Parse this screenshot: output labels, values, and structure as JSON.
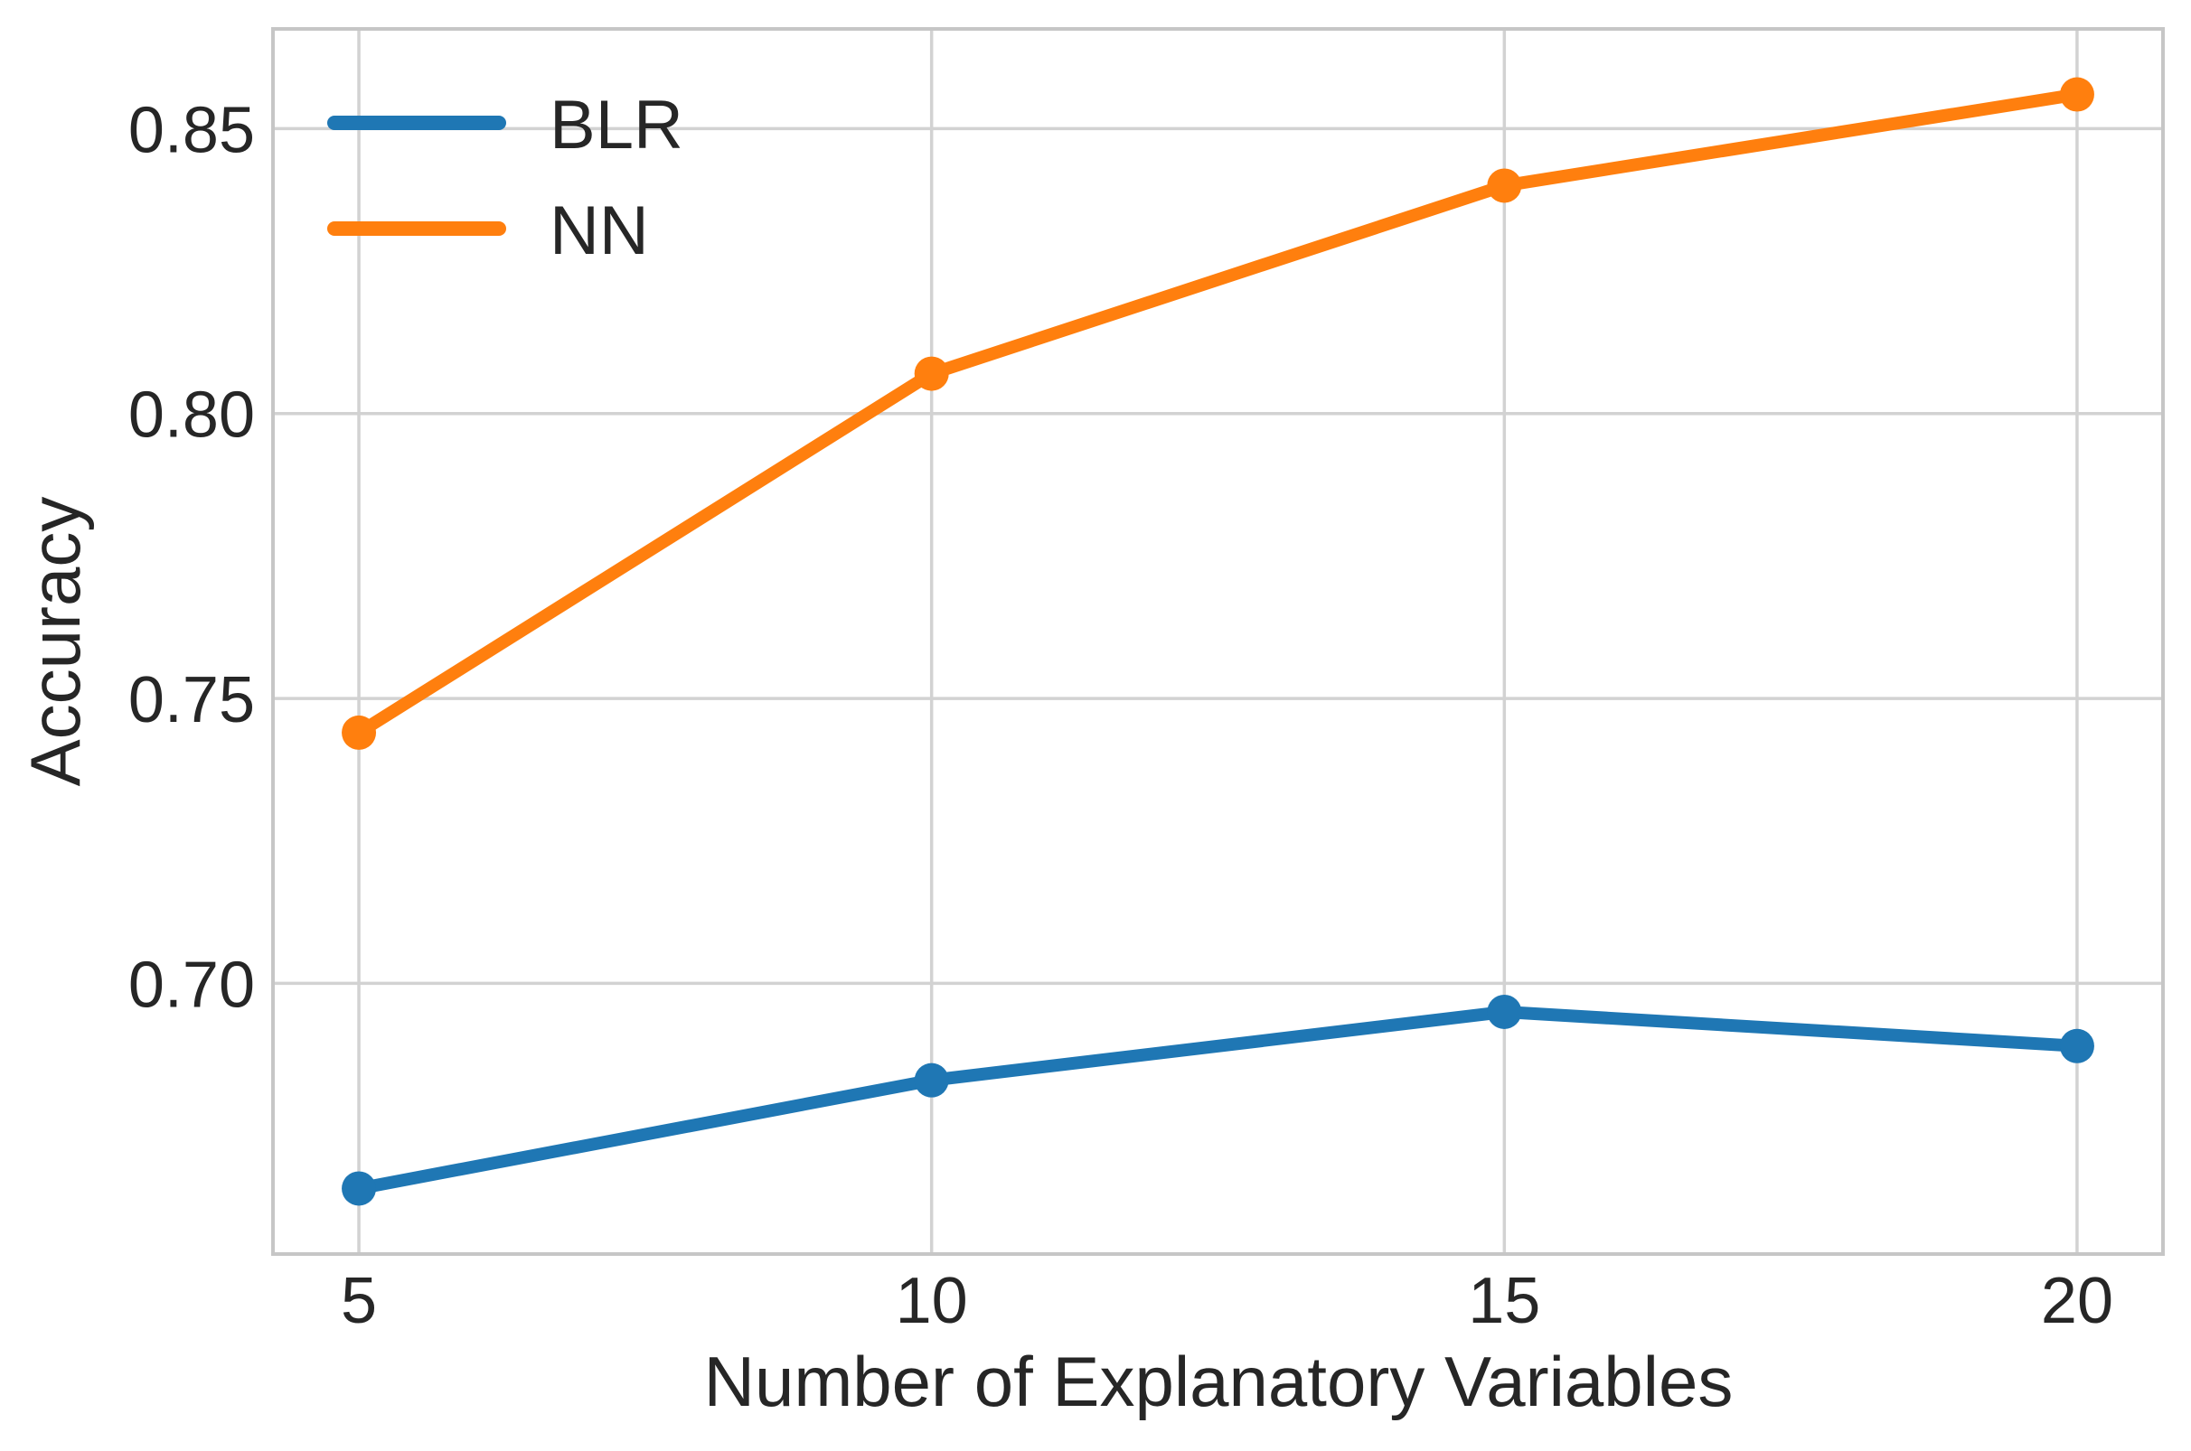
{
  "figure": {
    "background": "#ffffff",
    "text_color": "#262626",
    "grid_color": "#d2d2d2",
    "spine_color": "#c6c6c6"
  },
  "chart_data": {
    "type": "line",
    "title": "",
    "xlabel": "Number of Explanatory Variables",
    "ylabel": "Accuracy",
    "x": [
      5,
      10,
      15,
      20
    ],
    "series": [
      {
        "name": "BLR",
        "color": "#1f77b4",
        "values": [
          0.664,
          0.683,
          0.695,
          0.689
        ]
      },
      {
        "name": "NN",
        "color": "#ff7f0e",
        "values": [
          0.744,
          0.807,
          0.84,
          0.856
        ]
      }
    ],
    "xticks": [
      5,
      10,
      15,
      20
    ],
    "xtick_labels": [
      "5",
      "10",
      "15",
      "20"
    ],
    "yticks": [
      0.7,
      0.75,
      0.8,
      0.85
    ],
    "ytick_labels": [
      "0.70",
      "0.75",
      "0.80",
      "0.85"
    ],
    "xlim": [
      4.25,
      20.75
    ],
    "ylim": [
      0.6525,
      0.8675
    ],
    "grid": true,
    "line_width": 14,
    "marker": "circle",
    "marker_radius": 19,
    "legend": {
      "position": "upper-left",
      "entries": [
        "BLR",
        "NN"
      ]
    }
  }
}
